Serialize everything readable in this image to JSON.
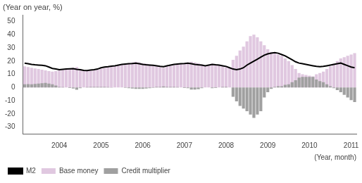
{
  "chart_data": {
    "type": "bar",
    "title": "(Year on year, %)",
    "xlabel": "(Year, month)",
    "categories": [
      null,
      null,
      null,
      null,
      null,
      null,
      null,
      null,
      null,
      null,
      "2004",
      null,
      null,
      null,
      null,
      null,
      null,
      null,
      null,
      null,
      null,
      null,
      "2005",
      null,
      null,
      null,
      null,
      null,
      null,
      null,
      null,
      null,
      null,
      null,
      "2006",
      null,
      null,
      null,
      null,
      null,
      null,
      null,
      null,
      null,
      null,
      null,
      "2007",
      null,
      null,
      null,
      null,
      null,
      null,
      null,
      null,
      null,
      null,
      null,
      "2008",
      null,
      null,
      null,
      null,
      null,
      null,
      null,
      null,
      null,
      null,
      null,
      "2009",
      null,
      null,
      null,
      null,
      null,
      null,
      null,
      null,
      null,
      null,
      null,
      "2010",
      null,
      null,
      null,
      null,
      null,
      null,
      null,
      null,
      null,
      null,
      null,
      "2011",
      null
    ],
    "series": [
      {
        "name": "M2",
        "type": "line",
        "color": "#000000",
        "values": [
          18.5,
          18.1,
          17.5,
          17.2,
          17.0,
          16.8,
          16.5,
          15.5,
          14.5,
          14.0,
          13.5,
          13.8,
          14.0,
          14.2,
          14.3,
          13.8,
          13.5,
          13.0,
          12.8,
          13.2,
          13.5,
          14.0,
          15.0,
          15.5,
          15.8,
          16.2,
          16.5,
          17.0,
          17.5,
          17.8,
          18.0,
          18.2,
          18.5,
          18.0,
          17.5,
          17.2,
          17.0,
          16.8,
          16.5,
          16.0,
          15.8,
          16.5,
          17.0,
          17.5,
          17.8,
          18.0,
          18.2,
          18.5,
          18.0,
          17.5,
          17.2,
          17.0,
          16.5,
          17.0,
          17.5,
          17.2,
          17.0,
          16.5,
          16.0,
          15.0,
          14.0,
          13.5,
          14.0,
          15.0,
          17.0,
          18.5,
          20.0,
          21.5,
          23.0,
          24.5,
          25.5,
          26.0,
          26.5,
          26.0,
          25.0,
          24.0,
          22.5,
          21.0,
          19.5,
          18.5,
          18.0,
          17.5,
          17.0,
          16.5,
          16.0,
          15.8,
          16.0,
          16.5,
          17.0,
          17.5,
          18.0,
          18.5,
          17.5,
          16.5,
          15.5,
          15.0
        ]
      },
      {
        "name": "Base money",
        "type": "bar",
        "color": "#e0c8e0",
        "values": [
          16.0,
          15.5,
          15.0,
          14.5,
          14.0,
          13.5,
          13.0,
          12.5,
          12.0,
          12.5,
          13.0,
          13.5,
          14.0,
          14.5,
          15.0,
          15.5,
          14.0,
          13.0,
          12.5,
          12.8,
          13.0,
          13.5,
          14.5,
          15.0,
          15.5,
          16.0,
          16.5,
          17.0,
          17.5,
          18.0,
          18.5,
          19.0,
          19.5,
          19.0,
          18.5,
          18.0,
          17.5,
          17.0,
          16.0,
          15.5,
          15.0,
          16.0,
          16.5,
          17.0,
          17.5,
          18.0,
          18.5,
          19.0,
          19.5,
          19.0,
          18.5,
          17.5,
          16.5,
          17.0,
          18.0,
          17.5,
          17.0,
          16.0,
          15.5,
          15.0,
          21.0,
          24.0,
          28.0,
          31.0,
          35.0,
          39.0,
          40.0,
          38.0,
          35.0,
          32.0,
          29.0,
          27.0,
          26.0,
          25.0,
          24.0,
          22.0,
          20.0,
          17.0,
          14.0,
          11.0,
          10.0,
          9.5,
          9.0,
          8.5,
          10.0,
          11.0,
          12.0,
          14.0,
          16.0,
          18.0,
          20.0,
          22.0,
          23.0,
          24.0,
          25.0,
          26.0
        ]
      },
      {
        "name": "Credit multiplier",
        "type": "bar",
        "color": "#a0a0a0",
        "values": [
          2.5,
          2.6,
          2.5,
          2.7,
          3.0,
          3.3,
          3.5,
          3.0,
          2.5,
          1.5,
          0.5,
          0.3,
          0.0,
          -0.3,
          -0.7,
          -1.7,
          -0.5,
          0.0,
          0.3,
          0.4,
          0.5,
          0.5,
          0.5,
          0.5,
          0.3,
          0.2,
          0.0,
          0.0,
          0.0,
          -0.2,
          -0.5,
          -0.8,
          -1.0,
          -1.0,
          -1.0,
          -0.8,
          -0.5,
          -0.2,
          0.5,
          0.5,
          0.8,
          0.5,
          0.5,
          0.5,
          0.3,
          0.0,
          -0.3,
          -0.5,
          -1.5,
          -1.5,
          -1.3,
          -0.5,
          0.0,
          0.0,
          -0.5,
          -0.3,
          0.0,
          0.5,
          0.5,
          0.0,
          -7.0,
          -10.5,
          -14.0,
          -16.0,
          -18.0,
          -20.5,
          -23.0,
          -20.5,
          -18.0,
          -7.5,
          -3.5,
          -1.0,
          0.5,
          1.0,
          1.0,
          2.0,
          2.5,
          4.0,
          5.5,
          7.5,
          8.0,
          8.0,
          8.0,
          8.0,
          6.0,
          4.8,
          4.0,
          2.5,
          1.0,
          -0.5,
          -2.0,
          -3.5,
          -5.5,
          -7.5,
          -9.5,
          -11.0
        ]
      }
    ],
    "ylim": [
      -35,
      55
    ],
    "yticks": [
      -30,
      -20,
      -10,
      0,
      10,
      20,
      30,
      40,
      50
    ],
    "grid": false,
    "legend": "bottom"
  }
}
